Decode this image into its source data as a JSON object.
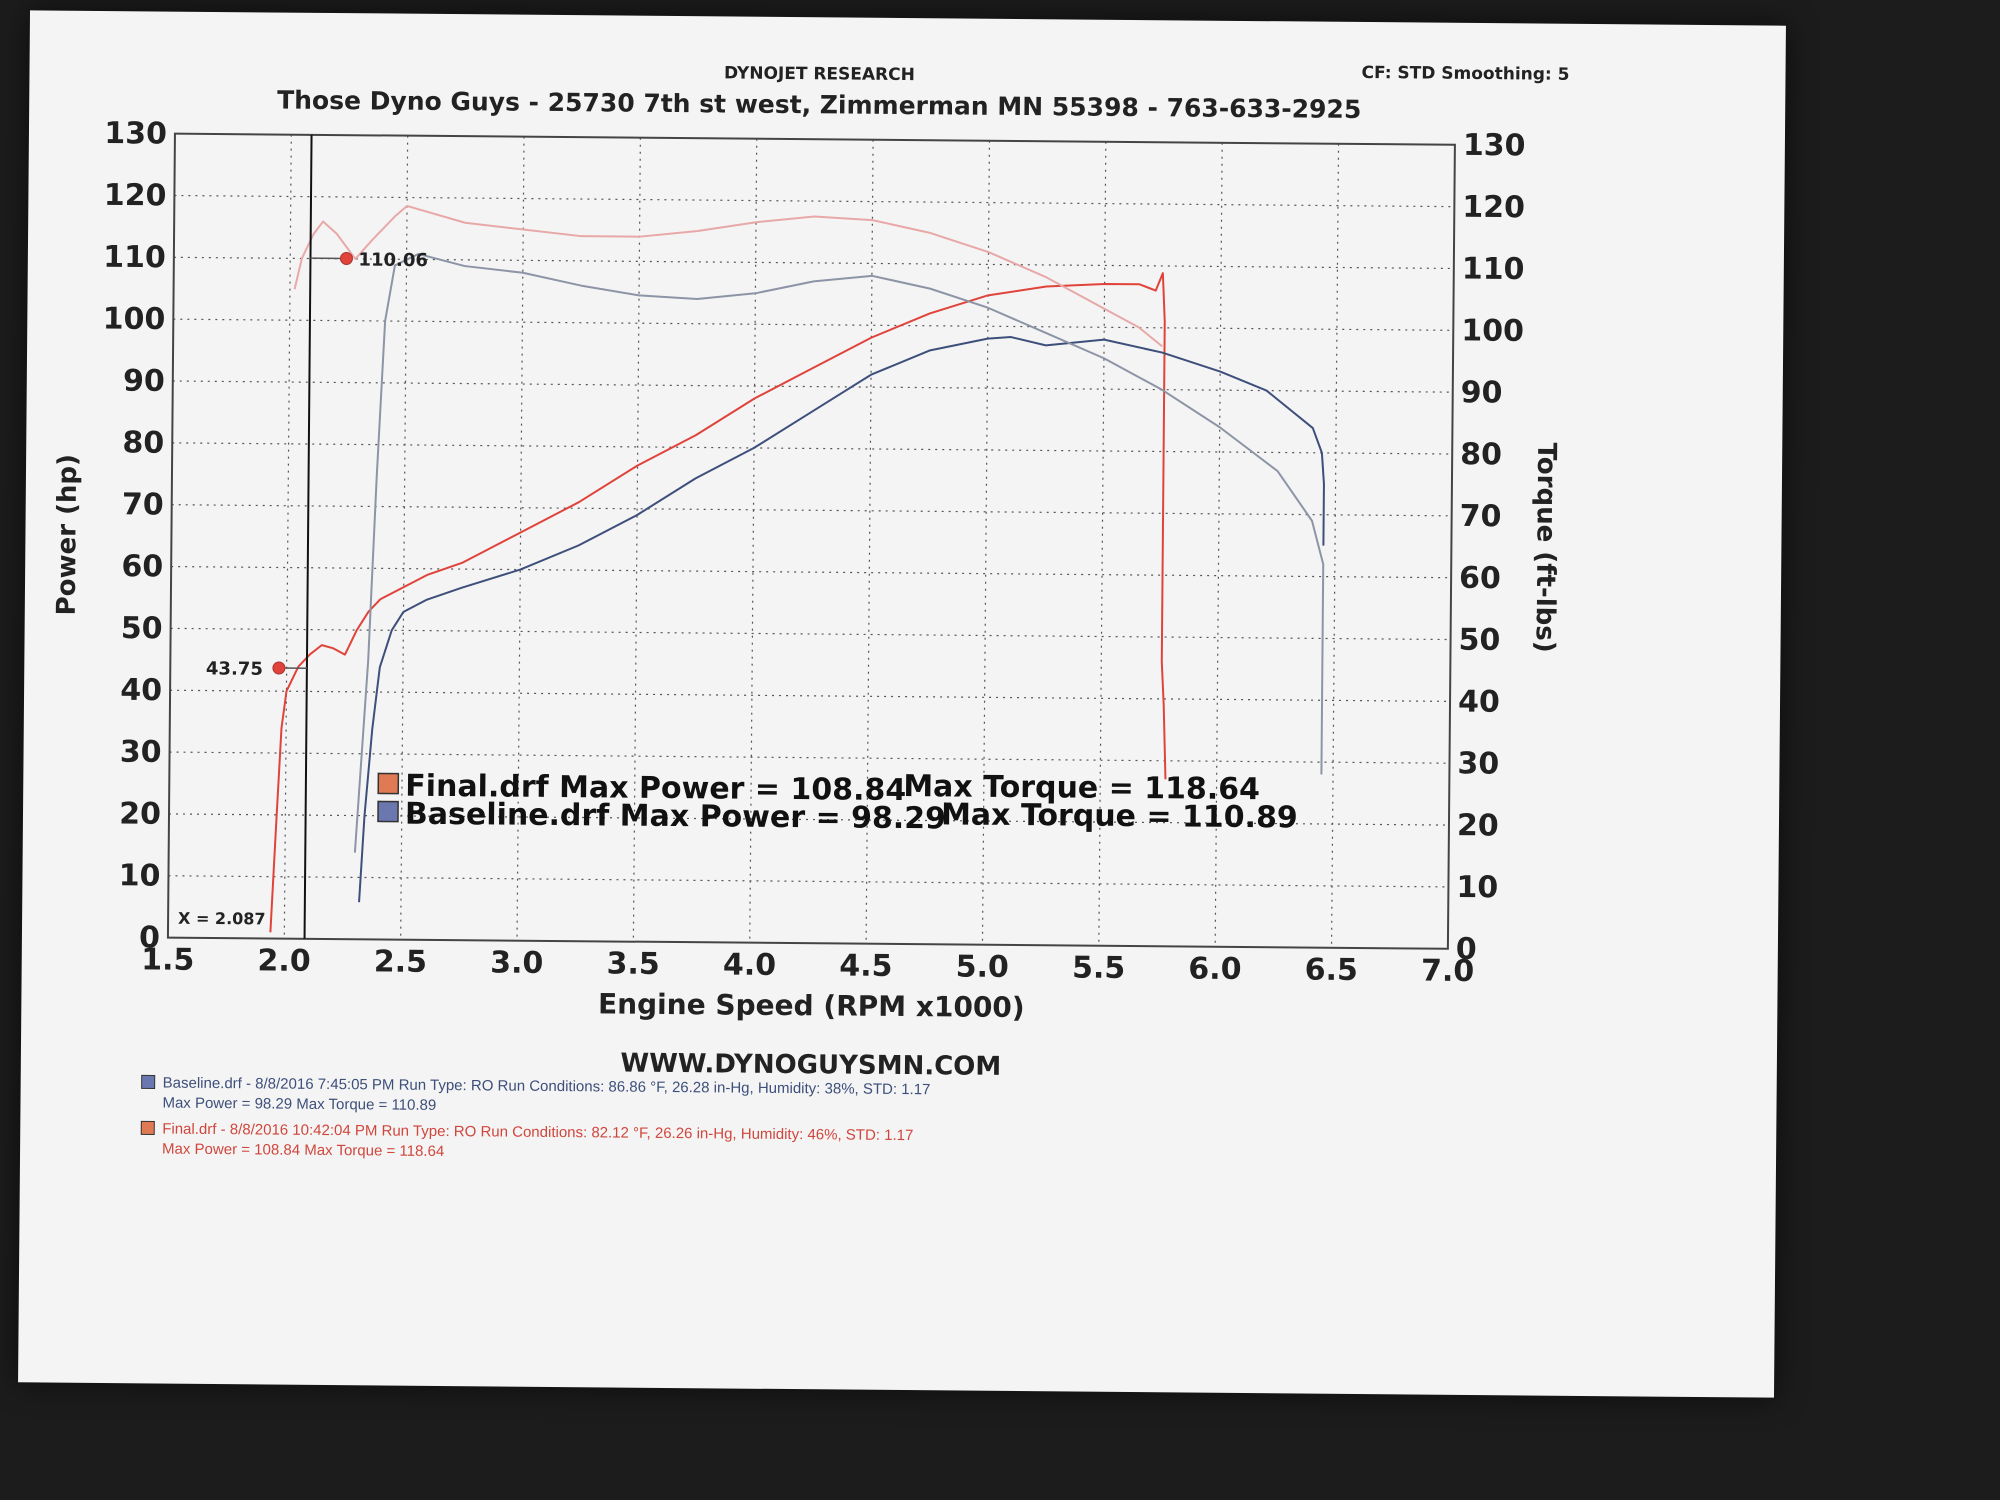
{
  "header": {
    "company": "DYNOJET RESEARCH",
    "settings": "CF: STD  Smoothing: 5",
    "shop": "Those Dyno Guys - 25730 7th st west, Zimmerman MN 55398 - 763-633-2925"
  },
  "website": "WWW.DYNOGUYSMN.COM",
  "cursor": {
    "label": "X = 2.087",
    "x": 2.087,
    "power_marker": "43.75",
    "torque_marker": "110.06"
  },
  "colors": {
    "final": "#e0433a",
    "baseline": "#3d4f7a",
    "final_light": "#e8a8a8",
    "baseline_light": "#8c94a6",
    "grid": "#555555"
  },
  "legend": {
    "final": {
      "text": "Final.drf Max Power = 108.84",
      "torque": "Max Torque = 118.64"
    },
    "baseline": {
      "text": "Baseline.drf Max Power = 98.29",
      "torque": "Max Torque = 110.89"
    }
  },
  "footer": {
    "baseline": {
      "line1": "Baseline.drf - 8/8/2016 7:45:05 PM  Run Type: RO  Run Conditions: 86.86 °F, 26.28 in-Hg,  Humidity:  38%, STD: 1.17",
      "line2": "Max Power = 98.29  Max Torque = 110.89"
    },
    "final": {
      "line1": "Final.drf - 8/8/2016 10:42:04 PM  Run Type: RO  Run Conditions: 82.12 °F, 26.26 in-Hg,  Humidity:  46%, STD: 1.17",
      "line2": "Max Power = 108.84  Max Torque = 118.64"
    }
  },
  "chart_data": {
    "type": "line",
    "title": "Those Dyno Guys - 25730 7th st west, Zimmerman MN 55398 - 763-633-2925",
    "xlabel": "Engine Speed (RPM x1000)",
    "ylabel": "Power (hp)",
    "y2label": "Torque (ft-lbs)",
    "xlim": [
      1.5,
      7.0
    ],
    "ylim": [
      0,
      130
    ],
    "y2lim": [
      0,
      130
    ],
    "x_ticks": [
      "1.5",
      "2.0",
      "2.5",
      "3.0",
      "3.5",
      "4.0",
      "4.5",
      "5.0",
      "5.5",
      "6.0",
      "6.5",
      "7.0"
    ],
    "y_ticks": [
      "0",
      "10",
      "20",
      "30",
      "40",
      "50",
      "60",
      "70",
      "80",
      "90",
      "100",
      "110",
      "120",
      "130"
    ],
    "grid": true,
    "series": [
      {
        "name": "Final.drf",
        "measure": "Power (hp)",
        "color": "#e0433a",
        "points": [
          [
            1.94,
            1
          ],
          [
            1.96,
            18
          ],
          [
            1.98,
            34
          ],
          [
            2.0,
            40
          ],
          [
            2.05,
            44
          ],
          [
            2.1,
            46
          ],
          [
            2.15,
            47.5
          ],
          [
            2.2,
            47
          ],
          [
            2.25,
            46
          ],
          [
            2.3,
            50
          ],
          [
            2.35,
            53
          ],
          [
            2.4,
            55
          ],
          [
            2.5,
            57
          ],
          [
            2.6,
            59
          ],
          [
            2.75,
            61
          ],
          [
            2.9,
            64
          ],
          [
            3.0,
            66
          ],
          [
            3.25,
            71
          ],
          [
            3.5,
            77
          ],
          [
            3.75,
            82
          ],
          [
            4.0,
            88
          ],
          [
            4.25,
            93
          ],
          [
            4.5,
            98
          ],
          [
            4.75,
            102
          ],
          [
            5.0,
            105
          ],
          [
            5.25,
            106.5
          ],
          [
            5.5,
            107
          ],
          [
            5.65,
            107
          ],
          [
            5.72,
            106
          ],
          [
            5.75,
            108.84
          ],
          [
            5.76,
            101
          ],
          [
            5.76,
            46
          ],
          [
            5.77,
            39
          ],
          [
            5.78,
            27
          ]
        ]
      },
      {
        "name": "Final.drf",
        "measure": "Torque (ft-lbs)",
        "color": "#e8a8a8",
        "points": [
          [
            2.02,
            105
          ],
          [
            2.05,
            110
          ],
          [
            2.1,
            114
          ],
          [
            2.14,
            116
          ],
          [
            2.2,
            114
          ],
          [
            2.28,
            110
          ],
          [
            2.35,
            113
          ],
          [
            2.45,
            117
          ],
          [
            2.5,
            118.64
          ],
          [
            2.75,
            116
          ],
          [
            3.0,
            115
          ],
          [
            3.25,
            114
          ],
          [
            3.5,
            114
          ],
          [
            3.75,
            115
          ],
          [
            4.0,
            116.5
          ],
          [
            4.25,
            117.5
          ],
          [
            4.5,
            117
          ],
          [
            4.75,
            115
          ],
          [
            5.0,
            112
          ],
          [
            5.25,
            108
          ],
          [
            5.5,
            103
          ],
          [
            5.65,
            100
          ],
          [
            5.75,
            97
          ]
        ]
      },
      {
        "name": "Baseline.drf",
        "measure": "Power (hp)",
        "color": "#3d4f7a",
        "points": [
          [
            2.32,
            6
          ],
          [
            2.34,
            20
          ],
          [
            2.37,
            34
          ],
          [
            2.4,
            44
          ],
          [
            2.45,
            50
          ],
          [
            2.5,
            53
          ],
          [
            2.6,
            55
          ],
          [
            2.75,
            57
          ],
          [
            3.0,
            60
          ],
          [
            3.25,
            64
          ],
          [
            3.5,
            69
          ],
          [
            3.75,
            75
          ],
          [
            4.0,
            80
          ],
          [
            4.25,
            86
          ],
          [
            4.5,
            92
          ],
          [
            4.75,
            96
          ],
          [
            5.0,
            98
          ],
          [
            5.1,
            98.29
          ],
          [
            5.25,
            97
          ],
          [
            5.5,
            98
          ],
          [
            5.75,
            96
          ],
          [
            6.0,
            93
          ],
          [
            6.2,
            90
          ],
          [
            6.4,
            84
          ],
          [
            6.44,
            80
          ],
          [
            6.45,
            75
          ],
          [
            6.45,
            65
          ]
        ]
      },
      {
        "name": "Baseline.drf",
        "measure": "Torque (ft-lbs)",
        "color": "#8c94a6",
        "points": [
          [
            2.3,
            14
          ],
          [
            2.35,
            45
          ],
          [
            2.38,
            75
          ],
          [
            2.41,
            100
          ],
          [
            2.45,
            109
          ],
          [
            2.55,
            110.89
          ],
          [
            2.75,
            109
          ],
          [
            3.0,
            108
          ],
          [
            3.25,
            106
          ],
          [
            3.5,
            104.5
          ],
          [
            3.75,
            104
          ],
          [
            4.0,
            105
          ],
          [
            4.25,
            107
          ],
          [
            4.5,
            108
          ],
          [
            4.75,
            106
          ],
          [
            5.0,
            103
          ],
          [
            5.25,
            99
          ],
          [
            5.5,
            95
          ],
          [
            5.75,
            90
          ],
          [
            6.0,
            84
          ],
          [
            6.25,
            77
          ],
          [
            6.4,
            69
          ],
          [
            6.45,
            62
          ],
          [
            6.45,
            50
          ],
          [
            6.45,
            28
          ]
        ]
      }
    ]
  }
}
